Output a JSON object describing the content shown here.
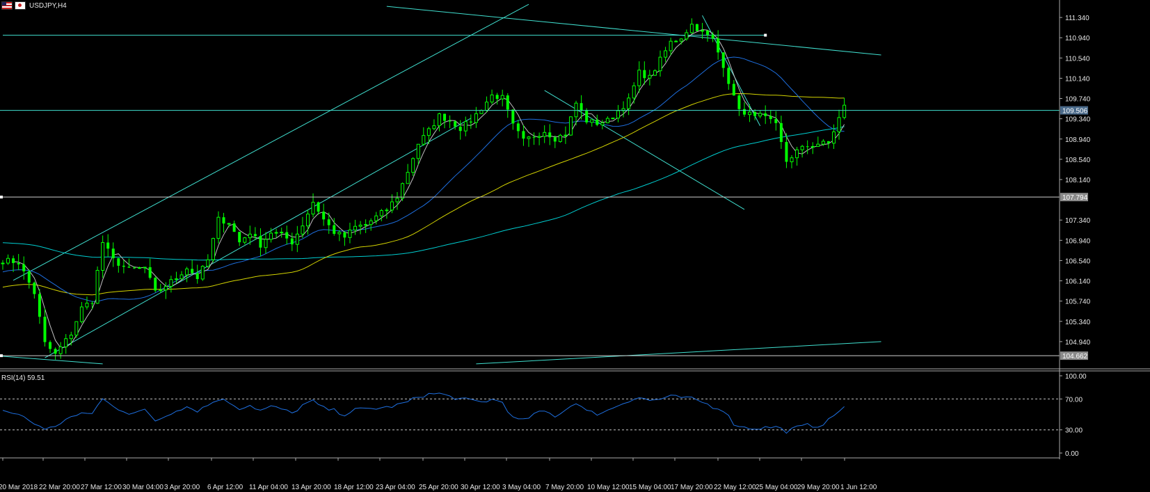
{
  "symbol_title": "USDJPY,H4",
  "rsi": {
    "label": "RSI(14) 59.51",
    "ticks": [
      "100.00",
      "70.00",
      "30.00",
      "0.00"
    ],
    "levels": [
      30,
      70
    ],
    "value": 59.51
  },
  "colors": {
    "background": "#000000",
    "bull_candle": "#00ff00",
    "trendlines": "#40e0d0",
    "ma_fast": "#c0c0c0",
    "ma_blue": "#1e6fe0",
    "ma_yellow": "#d4d400",
    "ma_cyan": "#00ced1",
    "rsi_line": "#1e6fe0",
    "axis_text": "#e8e8e8",
    "price_tag_bg": "#708090"
  },
  "chart_data": {
    "type": "candlestick",
    "symbol": "USDJPY",
    "timeframe": "H4",
    "y_ticks": [
      "111.340",
      "110.940",
      "110.540",
      "110.140",
      "109.740",
      "109.340",
      "108.940",
      "108.540",
      "108.140",
      "107.340",
      "106.940",
      "106.540",
      "106.140",
      "105.740",
      "105.340",
      "104.940"
    ],
    "ylim": [
      104.54,
      111.52
    ],
    "x_ticks": [
      "20 Mar 2018",
      "22 Mar 20:00",
      "27 Mar 12:00",
      "30 Mar 04:00",
      "3 Apr 20:00",
      "6 Apr 12:00",
      "11 Apr 04:00",
      "13 Apr 20:00",
      "18 Apr 12:00",
      "23 Apr 04:00",
      "25 Apr 20:00",
      "30 Apr 12:00",
      "3 May 04:00",
      "7 May 20:00",
      "10 May 12:00",
      "15 May 04:00",
      "17 May 20:00",
      "22 May 12:00",
      "25 May 04:00",
      "29 May 20:00",
      "1 Jun 12:00"
    ],
    "price_labels": [
      {
        "text": "109.506",
        "value": 109.506
      },
      {
        "text": "107.794",
        "value": 107.794
      },
      {
        "text": "104.662",
        "value": 104.662
      }
    ],
    "path_anchors": [
      [
        0,
        106.55
      ],
      [
        3,
        106.5
      ],
      [
        6,
        105.9
      ],
      [
        8,
        104.9
      ],
      [
        10,
        104.68
      ],
      [
        13,
        105.1
      ],
      [
        15,
        105.6
      ],
      [
        17,
        105.75
      ],
      [
        19,
        106.9
      ],
      [
        21,
        106.55
      ],
      [
        24,
        106.35
      ],
      [
        27,
        106.4
      ],
      [
        29,
        105.9
      ],
      [
        31,
        106.05
      ],
      [
        33,
        106.2
      ],
      [
        35,
        106.4
      ],
      [
        37,
        106.2
      ],
      [
        39,
        106.55
      ],
      [
        41,
        107.35
      ],
      [
        43,
        107.3
      ],
      [
        45,
        106.9
      ],
      [
        47,
        107.1
      ],
      [
        49,
        106.85
      ],
      [
        51,
        107.1
      ],
      [
        53,
        107.05
      ],
      [
        55,
        106.9
      ],
      [
        57,
        107.25
      ],
      [
        59,
        107.7
      ],
      [
        61,
        107.35
      ],
      [
        63,
        107.1
      ],
      [
        65,
        107.0
      ],
      [
        67,
        107.2
      ],
      [
        69,
        107.25
      ],
      [
        71,
        107.4
      ],
      [
        73,
        107.55
      ],
      [
        75,
        107.8
      ],
      [
        77,
        108.3
      ],
      [
        79,
        108.85
      ],
      [
        81,
        109.1
      ],
      [
        83,
        109.4
      ],
      [
        85,
        109.3
      ],
      [
        87,
        109.15
      ],
      [
        89,
        109.3
      ],
      [
        91,
        109.55
      ],
      [
        93,
        109.8
      ],
      [
        95,
        109.75
      ],
      [
        97,
        109.2
      ],
      [
        99,
        108.9
      ],
      [
        101,
        109.0
      ],
      [
        103,
        109.1
      ],
      [
        105,
        108.95
      ],
      [
        107,
        109.05
      ],
      [
        109,
        109.65
      ],
      [
        111,
        109.3
      ],
      [
        113,
        109.25
      ],
      [
        115,
        109.3
      ],
      [
        117,
        109.5
      ],
      [
        119,
        109.7
      ],
      [
        121,
        110.25
      ],
      [
        123,
        110.15
      ],
      [
        125,
        110.5
      ],
      [
        127,
        110.85
      ],
      [
        129,
        110.95
      ],
      [
        131,
        111.2
      ],
      [
        133,
        111.05
      ],
      [
        135,
        110.9
      ],
      [
        137,
        110.4
      ],
      [
        139,
        109.75
      ],
      [
        141,
        109.4
      ],
      [
        143,
        109.45
      ],
      [
        145,
        109.35
      ],
      [
        147,
        109.2
      ],
      [
        149,
        108.5
      ],
      [
        151,
        108.7
      ],
      [
        153,
        108.8
      ],
      [
        155,
        108.85
      ],
      [
        157,
        108.85
      ],
      [
        159,
        109.35
      ],
      [
        160,
        109.58
      ]
    ],
    "overlays": {
      "channel_lower": [
        [
          8,
          104.62
        ],
        [
          89,
          109.35
        ]
      ],
      "channel_upper": [
        [
          2,
          106.15
        ],
        [
          100,
          111.6
        ]
      ],
      "upper_horizontal": [
        [
          0,
          110.99
        ],
        [
          145,
          110.99
        ]
      ],
      "resistance_long": [
        [
          73,
          111.56
        ],
        [
          167,
          110.6
        ]
      ],
      "down_channel_upper": [
        [
          133,
          111.38
        ],
        [
          144,
          109.2
        ]
      ],
      "down_channel_lower": [
        [
          103,
          109.9
        ],
        [
          141,
          107.55
        ]
      ],
      "support_rising": [
        [
          90,
          104.5
        ],
        [
          167,
          104.94
        ]
      ],
      "rising_line_low": [
        [
          0,
          104.65
        ],
        [
          19,
          104.5
        ]
      ]
    },
    "rsi_anchors": [
      [
        0,
        55
      ],
      [
        3,
        50
      ],
      [
        6,
        38
      ],
      [
        8,
        32
      ],
      [
        10,
        33
      ],
      [
        12,
        45
      ],
      [
        15,
        50
      ],
      [
        17,
        52
      ],
      [
        19,
        70
      ],
      [
        21,
        60
      ],
      [
        24,
        52
      ],
      [
        27,
        55
      ],
      [
        29,
        42
      ],
      [
        31,
        48
      ],
      [
        33,
        56
      ],
      [
        35,
        60
      ],
      [
        37,
        55
      ],
      [
        39,
        62
      ],
      [
        41,
        70
      ],
      [
        43,
        66
      ],
      [
        45,
        58
      ],
      [
        47,
        62
      ],
      [
        49,
        55
      ],
      [
        51,
        60
      ],
      [
        53,
        57
      ],
      [
        55,
        51
      ],
      [
        57,
        62
      ],
      [
        59,
        67
      ],
      [
        61,
        58
      ],
      [
        63,
        55
      ],
      [
        65,
        50
      ],
      [
        67,
        56
      ],
      [
        69,
        57
      ],
      [
        71,
        58
      ],
      [
        73,
        59
      ],
      [
        75,
        62
      ],
      [
        77,
        66
      ],
      [
        79,
        73
      ],
      [
        81,
        76
      ],
      [
        83,
        77
      ],
      [
        85,
        73
      ],
      [
        87,
        70
      ],
      [
        89,
        68
      ],
      [
        91,
        66
      ],
      [
        93,
        69
      ],
      [
        95,
        66
      ],
      [
        97,
        45
      ],
      [
        99,
        42
      ],
      [
        101,
        50
      ],
      [
        103,
        54
      ],
      [
        105,
        48
      ],
      [
        107,
        56
      ],
      [
        109,
        66
      ],
      [
        111,
        54
      ],
      [
        113,
        51
      ],
      [
        115,
        55
      ],
      [
        117,
        62
      ],
      [
        119,
        68
      ],
      [
        121,
        72
      ],
      [
        123,
        68
      ],
      [
        125,
        70
      ],
      [
        127,
        73
      ],
      [
        129,
        72
      ],
      [
        131,
        70
      ],
      [
        133,
        66
      ],
      [
        135,
        60
      ],
      [
        137,
        56
      ],
      [
        139,
        38
      ],
      [
        141,
        33
      ],
      [
        143,
        32
      ],
      [
        145,
        33
      ],
      [
        147,
        34
      ],
      [
        149,
        28
      ],
      [
        151,
        33
      ],
      [
        153,
        36
      ],
      [
        155,
        35
      ],
      [
        157,
        42
      ],
      [
        159,
        55
      ],
      [
        160,
        60
      ]
    ]
  }
}
